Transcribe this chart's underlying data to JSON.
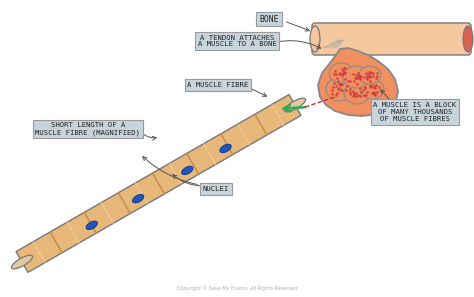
{
  "background_color": "#ffffff",
  "copyright": "Copyright © Save My Exams. All Rights Reserved",
  "labels": {
    "bone": "BONE",
    "tendon": "A TENDON ATTACHES\nA MUSCLE TO A BONE",
    "muscle_fibre": "A MUSCLE FIBRE",
    "short_length": "SHORT LENGTH OF A\nMUSCLE FIBRE (MAGNIFIED)",
    "nuclei": "NUCLEI",
    "muscle_block": "A MUSCLE IS A BLOCK\nOF MANY THOUSANDS\nOF MUSCLE FIBRES"
  },
  "colors": {
    "bone_fill": "#f5c8a0",
    "bone_end": "#d96050",
    "bone_outline": "#777777",
    "muscle_orange": "#f09060",
    "muscle_outline": "#888888",
    "muscle_dots": "#d04040",
    "muscle_dot_bg": "#f07070",
    "fibre_fill": "#e8b87a",
    "fibre_stripe_dark": "#c89050",
    "fibre_stripe_light": "#f0d0a0",
    "nuclei_fill": "#2255bb",
    "nuclei_outline": "#0a3090",
    "label_bg": "#c8d4dc",
    "label_border": "#999999",
    "label_text": "#222222",
    "arrow_dark": "#555555",
    "arrow_green": "#35a855",
    "arrow_red": "#cc2222",
    "tendon_line": "#888888",
    "end_cap": "#e0c8a0"
  }
}
